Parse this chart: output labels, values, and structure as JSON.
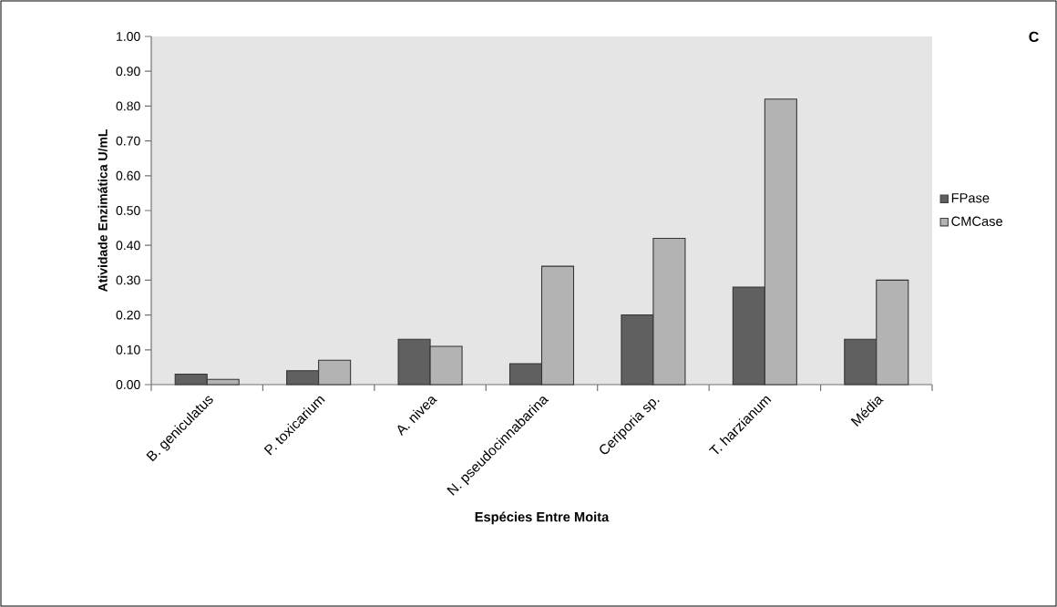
{
  "chart_data": {
    "type": "bar",
    "xlabel": "Espécies Entre Moita",
    "ylabel": "Atividade Enzimática U/mL",
    "annotations": [
      "C"
    ],
    "categories": [
      "B. geniculatus",
      "P. toxicarium",
      "A. nivea",
      "N. pseudocinnabarina",
      "Ceriporia sp.",
      "T. harzianum",
      "Média"
    ],
    "series": [
      {
        "name": "FPase",
        "color": "#606060",
        "values": [
          0.03,
          0.04,
          0.13,
          0.06,
          0.2,
          0.28,
          0.13
        ]
      },
      {
        "name": "CMCase",
        "color": "#b3b3b3",
        "values": [
          0.015,
          0.07,
          0.11,
          0.34,
          0.42,
          0.82,
          0.3
        ]
      }
    ],
    "ylim": [
      0,
      1
    ],
    "yticks": [
      {
        "value": 0,
        "label": "0.00"
      },
      {
        "value": 0.1,
        "label": "0.10"
      },
      {
        "value": 0.2,
        "label": "0.20"
      },
      {
        "value": 0.3,
        "label": "0.30"
      },
      {
        "value": 0.4,
        "label": "0.40"
      },
      {
        "value": 0.5,
        "label": "0.50"
      },
      {
        "value": 0.6,
        "label": "0.60"
      },
      {
        "value": 0.7,
        "label": "0.70"
      },
      {
        "value": 0.8,
        "label": "0.80"
      },
      {
        "value": 0.9,
        "label": "0.90"
      },
      {
        "value": 1,
        "label": "1.00"
      }
    ],
    "legend": "right"
  }
}
